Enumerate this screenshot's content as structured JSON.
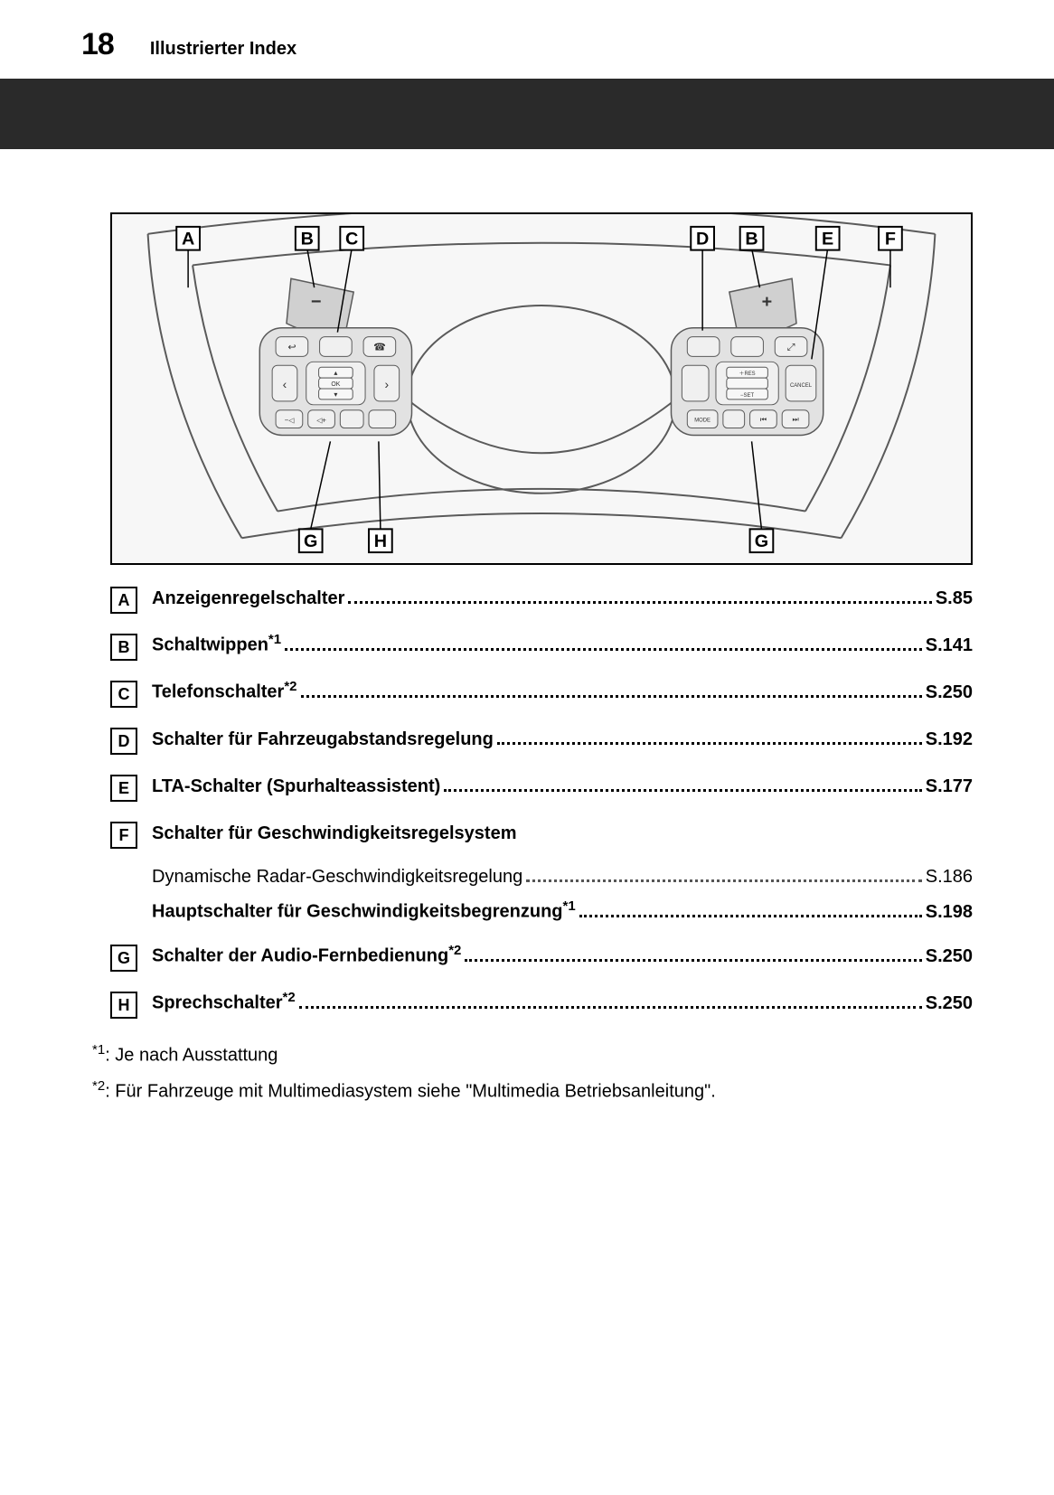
{
  "header": {
    "page_number": "18",
    "section": "Illustrierter Index"
  },
  "figure": {
    "top_labels": [
      "A",
      "B",
      "C",
      "D",
      "B",
      "E",
      "F"
    ],
    "bottom_labels": [
      "G",
      "H",
      "G"
    ],
    "left_button_rows": {
      "top": [
        "↩",
        "·",
        "☎"
      ],
      "mid_left": "‹",
      "mid_right": "›",
      "center_top": "▴",
      "center_mid": "OK",
      "center_bot": "▾",
      "bot": [
        "−⯀",
        "⯀+",
        "·",
        "◦§"
      ]
    },
    "right_button_rows": {
      "top": [
        "⊢",
        "·",
        "↗"
      ],
      "mid_center_top": "＋RES",
      "mid_center_mid": "",
      "mid_center_bot": "−SET",
      "mid_left_top": "⋇",
      "mid_left_bot": "◠",
      "mid_right": "CANCEL",
      "bot": [
        "MODE",
        "·",
        "⏮",
        "⏭"
      ]
    }
  },
  "entries": [
    {
      "letter": "A",
      "label": "Anzeigenregelschalter",
      "sup": "",
      "page": "S.85"
    },
    {
      "letter": "B",
      "label": "Schaltwippen",
      "sup": "*1",
      "page": "S.141"
    },
    {
      "letter": "C",
      "label": "Telefonschalter",
      "sup": "*2",
      "page": "S.250"
    },
    {
      "letter": "D",
      "label": "Schalter für Fahrzeugabstandsregelung",
      "sup": "",
      "page": "S.192"
    },
    {
      "letter": "E",
      "label": "LTA-Schalter (Spurhalteassistent)",
      "sup": "",
      "page": "S.177"
    }
  ],
  "entry_f": {
    "letter": "F",
    "label": "Schalter für Geschwindigkeitsregelsystem",
    "subs": [
      {
        "label": "Dynamische Radar-Geschwindigkeitsregelung",
        "sup": "",
        "page": "S.186",
        "bold": false
      },
      {
        "label": "Hauptschalter für Geschwindigkeitsbegrenzung",
        "sup": "*1",
        "page": "S.198",
        "bold": true
      }
    ]
  },
  "entries_tail": [
    {
      "letter": "G",
      "label": "Schalter der Audio-Fernbedienung",
      "sup": "*2",
      "page": "S.250"
    },
    {
      "letter": "H",
      "label": "Sprechschalter",
      "sup": "*2",
      "page": "S.250"
    }
  ],
  "footnotes": [
    {
      "mark": "*1",
      "text": ": Je nach Ausstattung"
    },
    {
      "mark": "*2",
      "text": ": Für Fahrzeuge mit Multimediasystem siehe \"Multimedia Betriebsanleitung\"."
    }
  ],
  "colors": {
    "page_bg": "#ffffff",
    "strip_bg": "#2a2a2a",
    "figure_bg": "#f7f7f7",
    "shade": "#d0d0d0",
    "line": "#5a5a5a",
    "stroke_dark": "#333333"
  }
}
